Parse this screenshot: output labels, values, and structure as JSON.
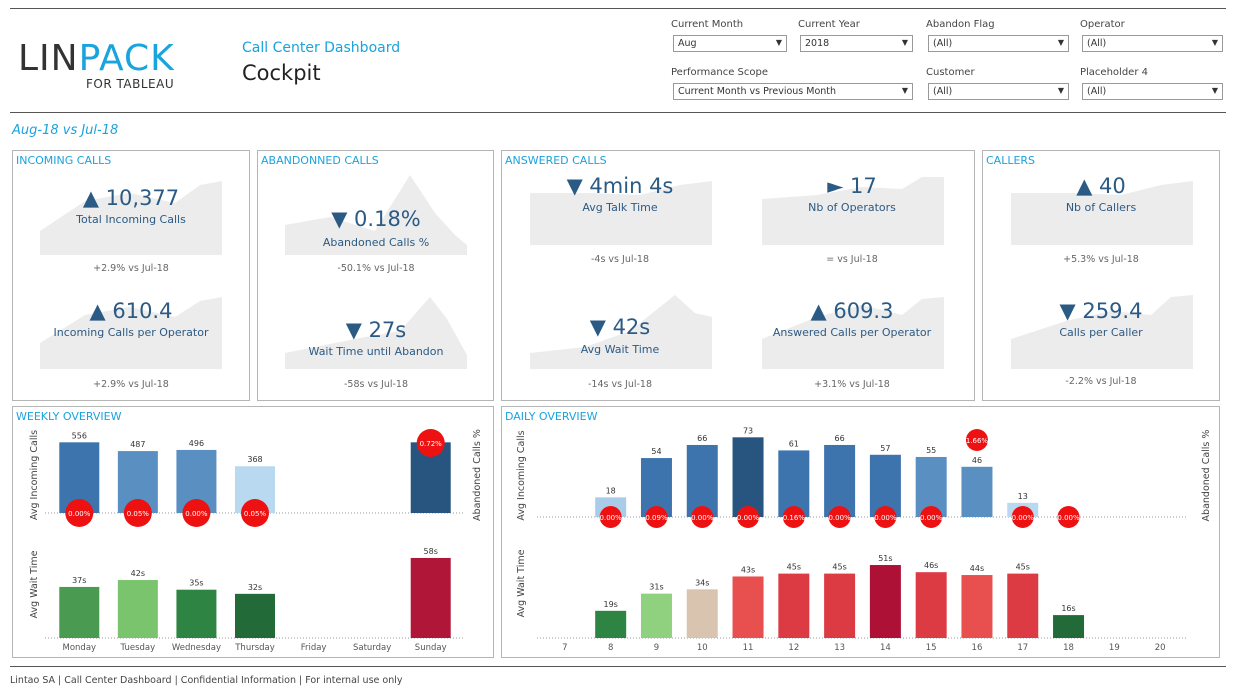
{
  "logo": {
    "main_left": "LIN",
    "main_right": "PACK",
    "sub": "FOR TABLEAU"
  },
  "header": {
    "subtitle": "Call Center Dashboard",
    "title": "Cockpit"
  },
  "filters": {
    "current_month": {
      "label": "Current Month",
      "value": "Aug"
    },
    "current_year": {
      "label": "Current Year",
      "value": "2018"
    },
    "abandon_flag": {
      "label": "Abandon Flag",
      "value": "(All)"
    },
    "operator": {
      "label": "Operator",
      "value": "(All)"
    },
    "performance_scope": {
      "label": "Performance Scope",
      "value": "Current Month vs Previous Month"
    },
    "customer": {
      "label": "Customer",
      "value": "(All)"
    },
    "placeholder4": {
      "label": "Placeholder 4",
      "value": "(All)"
    }
  },
  "period_label": "Aug-18 vs Jul-18",
  "panels": {
    "incoming": {
      "title": "INCOMING CALLS",
      "kpi1": {
        "value": "▲ 10,377",
        "label": "Total Incoming Calls",
        "vs": "+2.9% vs Jul-18"
      },
      "kpi2": {
        "value": "▲ 610.4",
        "label": "Incoming Calls per Operator",
        "vs": "+2.9% vs Jul-18"
      }
    },
    "abandoned": {
      "title": "ABANDONNED CALLS",
      "kpi1": {
        "value": "▼ 0.18%",
        "label": "Abandoned Calls %",
        "vs": "-50.1% vs Jul-18"
      },
      "kpi2": {
        "value": "▼ 27s",
        "label": "Wait Time until Abandon",
        "vs": "-58s vs Jul-18"
      }
    },
    "answered": {
      "title": "ANSWERED CALLS",
      "kpi1": {
        "value": "▼ 4min 4s",
        "label": "Avg Talk Time",
        "vs": "-4s vs Jul-18"
      },
      "kpi2": {
        "value": "► 17",
        "label": "Nb of Operators",
        "vs": "= vs Jul-18"
      },
      "kpi3": {
        "value": "▼ 42s",
        "label": "Avg Wait Time",
        "vs": "-14s vs Jul-18"
      },
      "kpi4": {
        "value": "▲ 609.3",
        "label": "Answered Calls per Operator",
        "vs": "+3.1% vs Jul-18"
      }
    },
    "callers": {
      "title": "CALLERS",
      "kpi1": {
        "value": "▲ 40",
        "label": "Nb of Callers",
        "vs": "+5.3% vs Jul-18"
      },
      "kpi2": {
        "value": "▼ 259.4",
        "label": "Calls per Caller",
        "vs": "-2.2% vs Jul-18"
      }
    },
    "weekly": {
      "title": "WEEKLY OVERVIEW"
    },
    "daily": {
      "title": "DAILY OVERVIEW"
    }
  },
  "chart_data": [
    {
      "type": "bar",
      "name": "weekly-incoming",
      "ylabel": "Avg Incoming Calls",
      "y2label": "Abandoned Calls %",
      "categories": [
        "Monday",
        "Tuesday",
        "Wednesday",
        "Thursday",
        "Friday",
        "Saturday",
        "Sunday"
      ],
      "values": [
        556,
        487,
        496,
        368,
        null,
        null,
        556
      ],
      "value_labels": [
        "556",
        "487",
        "496",
        "368",
        "",
        "",
        ""
      ],
      "abandoned_labels": [
        "0.00%",
        "0.05%",
        "0.00%",
        "0.05%",
        "",
        "",
        "0.72%"
      ],
      "colors": [
        "#3d74ad",
        "#5a8fc2",
        "#5a8fc2",
        "#b9d9f0",
        "",
        "",
        "#27557f"
      ]
    },
    {
      "type": "bar",
      "name": "weekly-wait",
      "ylabel": "Avg Wait Time",
      "categories": [
        "Monday",
        "Tuesday",
        "Wednesday",
        "Thursday",
        "Friday",
        "Saturday",
        "Sunday"
      ],
      "values": [
        37,
        42,
        35,
        32,
        null,
        null,
        58
      ],
      "value_labels": [
        "37s",
        "42s",
        "35s",
        "32s",
        "",
        "",
        "58s"
      ],
      "colors": [
        "#4a9a52",
        "#7bc46e",
        "#2e8442",
        "#226b39",
        "",
        "",
        "#b01638"
      ]
    },
    {
      "type": "bar",
      "name": "daily-incoming",
      "ylabel": "Avg Incoming Calls",
      "y2label": "Abandoned Calls %",
      "categories": [
        "7",
        "8",
        "9",
        "10",
        "11",
        "12",
        "13",
        "14",
        "15",
        "16",
        "17",
        "18",
        "19",
        "20"
      ],
      "values": [
        null,
        18,
        54,
        66,
        73,
        61,
        66,
        57,
        55,
        46,
        13,
        null,
        null,
        null
      ],
      "value_labels": [
        "",
        "18",
        "54",
        "66",
        "73",
        "61",
        "66",
        "57",
        "55",
        "46",
        "13",
        "",
        "",
        ""
      ],
      "abandoned_labels": [
        "",
        "0.00%",
        "0.09%",
        "0.00%",
        "0.00%",
        "0.16%",
        "0.00%",
        "0.00%",
        "0.00%",
        "1.66%",
        "0.00%",
        "0.00%",
        "",
        ""
      ],
      "colors": [
        "",
        "#a9cde9",
        "#3d74ad",
        "#3d74ad",
        "#27557f",
        "#3d74ad",
        "#3d74ad",
        "#3d74ad",
        "#5a8fc2",
        "#5a8fc2",
        "#b9d9f0",
        "",
        "",
        ""
      ]
    },
    {
      "type": "bar",
      "name": "daily-wait",
      "ylabel": "Avg Wait Time",
      "categories": [
        "7",
        "8",
        "9",
        "10",
        "11",
        "12",
        "13",
        "14",
        "15",
        "16",
        "17",
        "18",
        "19",
        "20"
      ],
      "values": [
        null,
        19,
        31,
        34,
        43,
        45,
        45,
        51,
        46,
        44,
        45,
        16,
        null,
        null
      ],
      "value_labels": [
        "",
        "19s",
        "31s",
        "34s",
        "43s",
        "45s",
        "45s",
        "51s",
        "46s",
        "44s",
        "45s",
        "16s",
        "",
        ""
      ],
      "colors": [
        "",
        "#2e8442",
        "#8fd17e",
        "#d9c4b0",
        "#e8504f",
        "#dd3b44",
        "#dd3b44",
        "#ad1236",
        "#dd3b44",
        "#e8504f",
        "#dd3b44",
        "#226b39",
        "",
        ""
      ]
    }
  ],
  "footer": "Lintao SA | Call Center Dashboard  | Confidential Information | For internal use only"
}
